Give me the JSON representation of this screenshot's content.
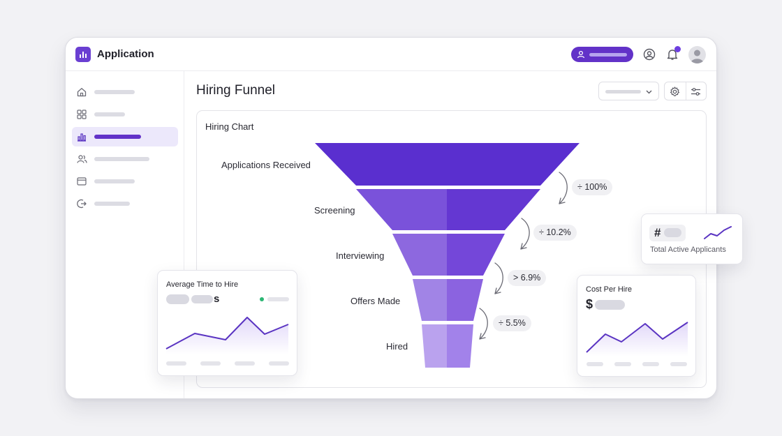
{
  "app": {
    "title": "Application"
  },
  "header": {
    "icons": [
      "bar-chart-icon",
      "user-icon",
      "account-circle-icon",
      "bell-icon",
      "avatar"
    ],
    "accent": "#6232c8"
  },
  "sidebar": {
    "items": [
      {
        "icon": "home-icon",
        "active": false
      },
      {
        "icon": "grid-icon",
        "active": false
      },
      {
        "icon": "bar-chart-icon",
        "active": true
      },
      {
        "icon": "users-icon",
        "active": false
      },
      {
        "icon": "browser-window-icon",
        "active": false
      },
      {
        "icon": "logout-icon",
        "active": false
      }
    ]
  },
  "main": {
    "title": "Hiring Funnel",
    "toolbar_icons": [
      "chevron-down-icon",
      "gear-icon",
      "sliders-icon"
    ]
  },
  "funnel": {
    "panel_title": "Hiring Chart",
    "stages": [
      {
        "label": "Applications Received"
      },
      {
        "label": "Screening"
      },
      {
        "label": "Interviewing"
      },
      {
        "label": "Offers Made"
      },
      {
        "label": "Hired"
      }
    ],
    "conversion_rates": [
      "÷ 100%",
      "÷ 10.2%",
      "> 6.9%",
      "÷ 5.5%"
    ],
    "colors": [
      "#5b2fcf",
      "#7a4fdb",
      "#8e66e0",
      "#a383e6",
      "#b99ded"
    ]
  },
  "cards": {
    "avg_time": {
      "title": "Average Time to Hire",
      "suffix": "s",
      "status_color": "#2bb673"
    },
    "active": {
      "symbol": "#",
      "label": "Total Active Applicants"
    },
    "cost": {
      "title": "Cost Per Hire",
      "symbol": "$"
    }
  }
}
